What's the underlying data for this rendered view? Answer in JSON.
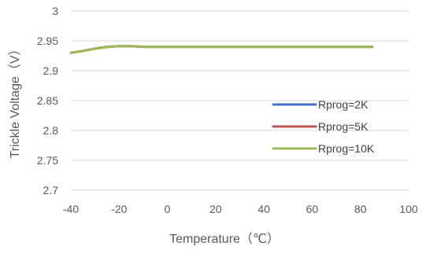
{
  "chart_data": {
    "type": "line",
    "xlabel": "Temperature（℃）",
    "ylabel": "Trickle Voltage（V）",
    "xlim": [
      -40,
      100
    ],
    "ylim": [
      2.7,
      3.0
    ],
    "x_ticks": [
      -40,
      -20,
      0,
      20,
      40,
      60,
      80,
      100
    ],
    "y_ticks": [
      "2.7",
      "2.75",
      "2.8",
      "2.85",
      "2.9",
      "2.95",
      "3"
    ],
    "grid": "horizontal",
    "legend_position": "right",
    "series": [
      {
        "name": "Rprog=2K",
        "color": "#4472c4",
        "x": [
          -40,
          -35,
          -30,
          -25,
          -20,
          -15,
          -10,
          0,
          20,
          40,
          60,
          85
        ],
        "y": [
          2.93,
          2.933,
          2.937,
          2.94,
          2.941,
          2.941,
          2.94,
          2.94,
          2.94,
          2.94,
          2.94,
          2.94
        ]
      },
      {
        "name": "Rprog=5K",
        "color": "#c0504d",
        "x": [
          -40,
          -35,
          -30,
          -25,
          -20,
          -15,
          -10,
          0,
          20,
          40,
          60,
          85
        ],
        "y": [
          2.93,
          2.933,
          2.937,
          2.94,
          2.941,
          2.941,
          2.94,
          2.94,
          2.94,
          2.94,
          2.94,
          2.94
        ]
      },
      {
        "name": "Rprog=10K",
        "color": "#9bbb59",
        "x": [
          -40,
          -35,
          -30,
          -25,
          -20,
          -15,
          -10,
          0,
          20,
          40,
          60,
          85
        ],
        "y": [
          2.93,
          2.933,
          2.937,
          2.94,
          2.941,
          2.941,
          2.94,
          2.94,
          2.94,
          2.94,
          2.94,
          2.94
        ]
      }
    ]
  }
}
